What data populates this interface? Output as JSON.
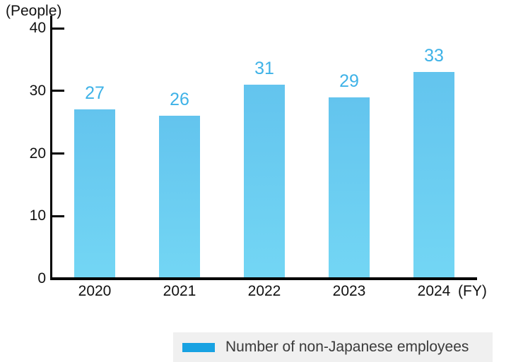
{
  "chart_data": {
    "type": "bar",
    "unit_label": "(People)",
    "x_suffix": "(FY)",
    "categories": [
      "2020",
      "2021",
      "2022",
      "2023",
      "2024"
    ],
    "values": [
      27,
      26,
      31,
      29,
      33
    ],
    "ylim": [
      0,
      40
    ],
    "yticks": [
      0,
      10,
      20,
      30,
      40
    ],
    "grid": false,
    "legend_label": "Number of non-Japanese employees",
    "legend_position": "bottom-right",
    "colors": {
      "bar_top": "#63c4ee",
      "bar_bottom": "#73d6f4",
      "value_label": "#3eb2e7",
      "legend_swatch": "#18a2e2",
      "legend_bg": "#f0f0f0",
      "axis": "#000000",
      "text": "#1a1a1a"
    }
  }
}
